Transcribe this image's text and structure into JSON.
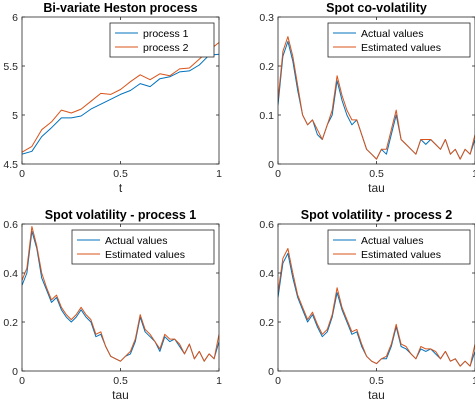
{
  "colors": {
    "series1": "#0072BD",
    "series2": "#D95319",
    "axis": "#262626"
  },
  "chart_data": [
    {
      "type": "line",
      "title": "Bi-variate Heston process",
      "xlabel": "t",
      "ylabel": "",
      "xlim": [
        0,
        1
      ],
      "ylim": [
        4.5,
        6
      ],
      "xticks": [
        "0",
        "0.5",
        "1"
      ],
      "yticks": [
        "4.5",
        "5",
        "5.5",
        "6"
      ],
      "legend": "top-right",
      "grid": false,
      "x": [
        0,
        0.05,
        0.1,
        0.15,
        0.2,
        0.25,
        0.3,
        0.35,
        0.4,
        0.45,
        0.5,
        0.55,
        0.6,
        0.65,
        0.7,
        0.75,
        0.8,
        0.85,
        0.9,
        0.95,
        1
      ],
      "series": [
        {
          "name": "process 1",
          "values": [
            4.6,
            4.63,
            4.78,
            4.87,
            4.97,
            4.97,
            4.99,
            5.06,
            5.11,
            5.16,
            5.21,
            5.25,
            5.32,
            5.29,
            5.37,
            5.39,
            5.44,
            5.45,
            5.51,
            5.61,
            5.62
          ]
        },
        {
          "name": "process 2",
          "values": [
            4.62,
            4.68,
            4.85,
            4.93,
            5.05,
            5.02,
            5.06,
            5.14,
            5.22,
            5.21,
            5.26,
            5.34,
            5.41,
            5.36,
            5.42,
            5.4,
            5.47,
            5.48,
            5.57,
            5.66,
            5.74
          ]
        }
      ]
    },
    {
      "type": "line",
      "title": "Spot co-volatility",
      "xlabel": "tau",
      "ylabel": "",
      "xlim": [
        0,
        1
      ],
      "ylim": [
        0,
        0.3
      ],
      "xticks": [
        "0",
        "0.5",
        "1"
      ],
      "yticks": [
        "0",
        "0.1",
        "0.2",
        "0.3"
      ],
      "legend": "top-right",
      "grid": false,
      "x": [
        0,
        0.025,
        0.05,
        0.075,
        0.1,
        0.125,
        0.15,
        0.175,
        0.2,
        0.225,
        0.25,
        0.275,
        0.3,
        0.325,
        0.35,
        0.375,
        0.4,
        0.425,
        0.45,
        0.475,
        0.5,
        0.525,
        0.55,
        0.575,
        0.6,
        0.625,
        0.65,
        0.675,
        0.7,
        0.725,
        0.75,
        0.775,
        0.8,
        0.825,
        0.85,
        0.875,
        0.9,
        0.925,
        0.95,
        0.975,
        1
      ],
      "series": [
        {
          "name": "Actual values",
          "values": [
            0.12,
            0.22,
            0.25,
            0.21,
            0.15,
            0.1,
            0.08,
            0.09,
            0.06,
            0.05,
            0.08,
            0.1,
            0.17,
            0.13,
            0.1,
            0.08,
            0.09,
            0.06,
            0.03,
            0.02,
            0.01,
            0.03,
            0.02,
            0.06,
            0.1,
            0.05,
            0.04,
            0.03,
            0.02,
            0.05,
            0.04,
            0.05,
            0.04,
            0.03,
            0.05,
            0.02,
            0.03,
            0.01,
            0.03,
            0.02,
            0.05
          ]
        },
        {
          "name": "Estimated values",
          "values": [
            0.13,
            0.23,
            0.26,
            0.22,
            0.16,
            0.1,
            0.08,
            0.09,
            0.07,
            0.05,
            0.08,
            0.11,
            0.18,
            0.14,
            0.11,
            0.09,
            0.09,
            0.06,
            0.03,
            0.02,
            0.01,
            0.03,
            0.03,
            0.07,
            0.11,
            0.05,
            0.04,
            0.03,
            0.02,
            0.05,
            0.05,
            0.05,
            0.04,
            0.03,
            0.05,
            0.02,
            0.03,
            0.01,
            0.03,
            0.02,
            0.06
          ]
        }
      ]
    },
    {
      "type": "line",
      "title": "Spot volatility - process 1",
      "xlabel": "tau",
      "ylabel": "",
      "xlim": [
        0,
        1
      ],
      "ylim": [
        0,
        0.6
      ],
      "xticks": [
        "0",
        "0.5",
        "1"
      ],
      "yticks": [
        "0",
        "0.2",
        "0.4",
        "0.6"
      ],
      "legend": "top-right",
      "grid": false,
      "x": [
        0,
        0.025,
        0.05,
        0.075,
        0.1,
        0.125,
        0.15,
        0.175,
        0.2,
        0.225,
        0.25,
        0.275,
        0.3,
        0.325,
        0.35,
        0.375,
        0.4,
        0.425,
        0.45,
        0.475,
        0.5,
        0.525,
        0.55,
        0.575,
        0.6,
        0.625,
        0.65,
        0.675,
        0.7,
        0.725,
        0.75,
        0.775,
        0.8,
        0.825,
        0.85,
        0.875,
        0.9,
        0.925,
        0.95,
        0.975,
        1
      ],
      "series": [
        {
          "name": "Actual values",
          "values": [
            0.35,
            0.4,
            0.57,
            0.5,
            0.38,
            0.33,
            0.28,
            0.3,
            0.25,
            0.22,
            0.2,
            0.22,
            0.25,
            0.22,
            0.2,
            0.14,
            0.15,
            0.1,
            0.06,
            0.05,
            0.04,
            0.06,
            0.07,
            0.12,
            0.22,
            0.16,
            0.14,
            0.12,
            0.08,
            0.14,
            0.12,
            0.13,
            0.1,
            0.07,
            0.11,
            0.05,
            0.08,
            0.04,
            0.07,
            0.05,
            0.12
          ]
        },
        {
          "name": "Estimated values",
          "values": [
            0.37,
            0.42,
            0.59,
            0.51,
            0.4,
            0.34,
            0.29,
            0.31,
            0.26,
            0.23,
            0.21,
            0.23,
            0.26,
            0.23,
            0.21,
            0.15,
            0.16,
            0.1,
            0.06,
            0.05,
            0.04,
            0.06,
            0.08,
            0.13,
            0.23,
            0.17,
            0.15,
            0.12,
            0.09,
            0.15,
            0.13,
            0.13,
            0.11,
            0.07,
            0.11,
            0.05,
            0.08,
            0.04,
            0.07,
            0.05,
            0.15
          ]
        }
      ]
    },
    {
      "type": "line",
      "title": "Spot volatility - process 2",
      "xlabel": "tau",
      "ylabel": "",
      "xlim": [
        0,
        1
      ],
      "ylim": [
        0,
        0.6
      ],
      "xticks": [
        "0",
        "0.5",
        "1"
      ],
      "yticks": [
        "0",
        "0.2",
        "0.4",
        "0.6"
      ],
      "legend": "top-right",
      "grid": false,
      "x": [
        0,
        0.025,
        0.05,
        0.075,
        0.1,
        0.125,
        0.15,
        0.175,
        0.2,
        0.225,
        0.25,
        0.275,
        0.3,
        0.325,
        0.35,
        0.375,
        0.4,
        0.425,
        0.45,
        0.475,
        0.5,
        0.525,
        0.55,
        0.575,
        0.6,
        0.625,
        0.65,
        0.675,
        0.7,
        0.725,
        0.75,
        0.775,
        0.8,
        0.825,
        0.85,
        0.875,
        0.9,
        0.925,
        0.95,
        0.975,
        1
      ],
      "series": [
        {
          "name": "Actual values",
          "values": [
            0.3,
            0.44,
            0.48,
            0.38,
            0.3,
            0.25,
            0.2,
            0.23,
            0.18,
            0.14,
            0.16,
            0.22,
            0.32,
            0.25,
            0.2,
            0.15,
            0.16,
            0.1,
            0.06,
            0.04,
            0.03,
            0.05,
            0.05,
            0.1,
            0.18,
            0.1,
            0.09,
            0.07,
            0.05,
            0.09,
            0.08,
            0.09,
            0.07,
            0.05,
            0.08,
            0.04,
            0.05,
            0.02,
            0.04,
            0.02,
            0.08
          ]
        },
        {
          "name": "Estimated values",
          "values": [
            0.32,
            0.46,
            0.5,
            0.4,
            0.31,
            0.26,
            0.21,
            0.24,
            0.19,
            0.15,
            0.17,
            0.23,
            0.34,
            0.26,
            0.21,
            0.16,
            0.17,
            0.11,
            0.06,
            0.04,
            0.03,
            0.05,
            0.06,
            0.11,
            0.19,
            0.11,
            0.1,
            0.07,
            0.05,
            0.1,
            0.09,
            0.09,
            0.08,
            0.05,
            0.08,
            0.04,
            0.05,
            0.02,
            0.04,
            0.02,
            0.11
          ]
        }
      ]
    }
  ]
}
